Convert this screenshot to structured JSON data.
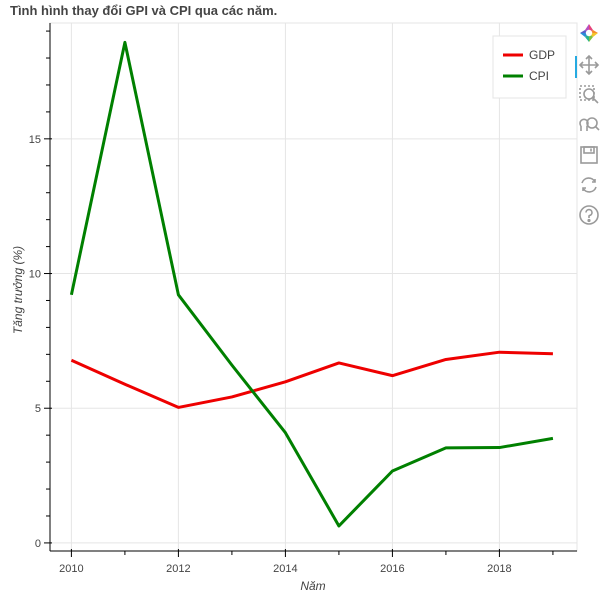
{
  "chart_data": {
    "type": "line",
    "title": "Tình hình thay đổi GPI và CPI qua các năm.",
    "xlabel": "Năm",
    "ylabel": "Tăng trưởng (%)",
    "x": [
      2010,
      2011,
      2012,
      2013,
      2014,
      2015,
      2016,
      2017,
      2018,
      2019
    ],
    "xlim": [
      2009.6,
      2019.45
    ],
    "ylim": [
      -0.3,
      19.3
    ],
    "x_ticks": [
      "2010",
      "2012",
      "2014",
      "2016",
      "2018"
    ],
    "y_ticks": [
      "0",
      "5",
      "10",
      "15"
    ],
    "grid": true,
    "legend_position": "top-right",
    "series": [
      {
        "name": "GDP",
        "color": "#ee0000",
        "values": [
          6.78,
          5.89,
          5.03,
          5.42,
          5.98,
          6.68,
          6.21,
          6.81,
          7.08,
          7.02
        ]
      },
      {
        "name": "CPI",
        "color": "#008000",
        "values": [
          9.21,
          18.58,
          9.21,
          6.6,
          4.09,
          0.63,
          2.67,
          3.53,
          3.54,
          3.88
        ]
      }
    ]
  },
  "toolbar": {
    "tools": [
      {
        "icon": "bokeh-logo-icon"
      },
      {
        "icon": "pan-icon",
        "active": true
      },
      {
        "icon": "box-zoom-icon"
      },
      {
        "icon": "wheel-zoom-icon"
      },
      {
        "icon": "save-icon"
      },
      {
        "icon": "reset-icon"
      },
      {
        "icon": "help-icon"
      }
    ]
  }
}
